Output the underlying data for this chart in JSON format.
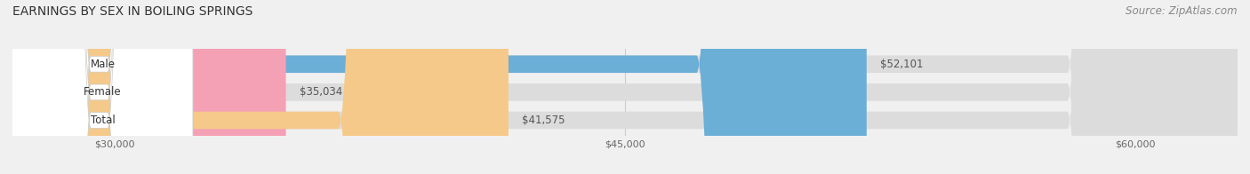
{
  "title": "EARNINGS BY SEX IN BOILING SPRINGS",
  "source": "Source: ZipAtlas.com",
  "categories": [
    "Male",
    "Female",
    "Total"
  ],
  "values": [
    52101,
    35034,
    41575
  ],
  "bar_colors": [
    "#6baed6",
    "#f4a0b5",
    "#f5c98a"
  ],
  "value_labels": [
    "$52,101",
    "$35,034",
    "$41,575"
  ],
  "xmin": 27000,
  "xmax": 63000,
  "xticks": [
    30000,
    45000,
    60000
  ],
  "xtick_labels": [
    "$30,000",
    "$45,000",
    "$60,000"
  ],
  "background_color": "#f0f0f0",
  "bar_bg_color": "#dcdcdc",
  "bar_height": 0.62,
  "title_fontsize": 10,
  "source_fontsize": 8.5,
  "label_fontsize": 8.5,
  "value_fontsize": 8.5
}
